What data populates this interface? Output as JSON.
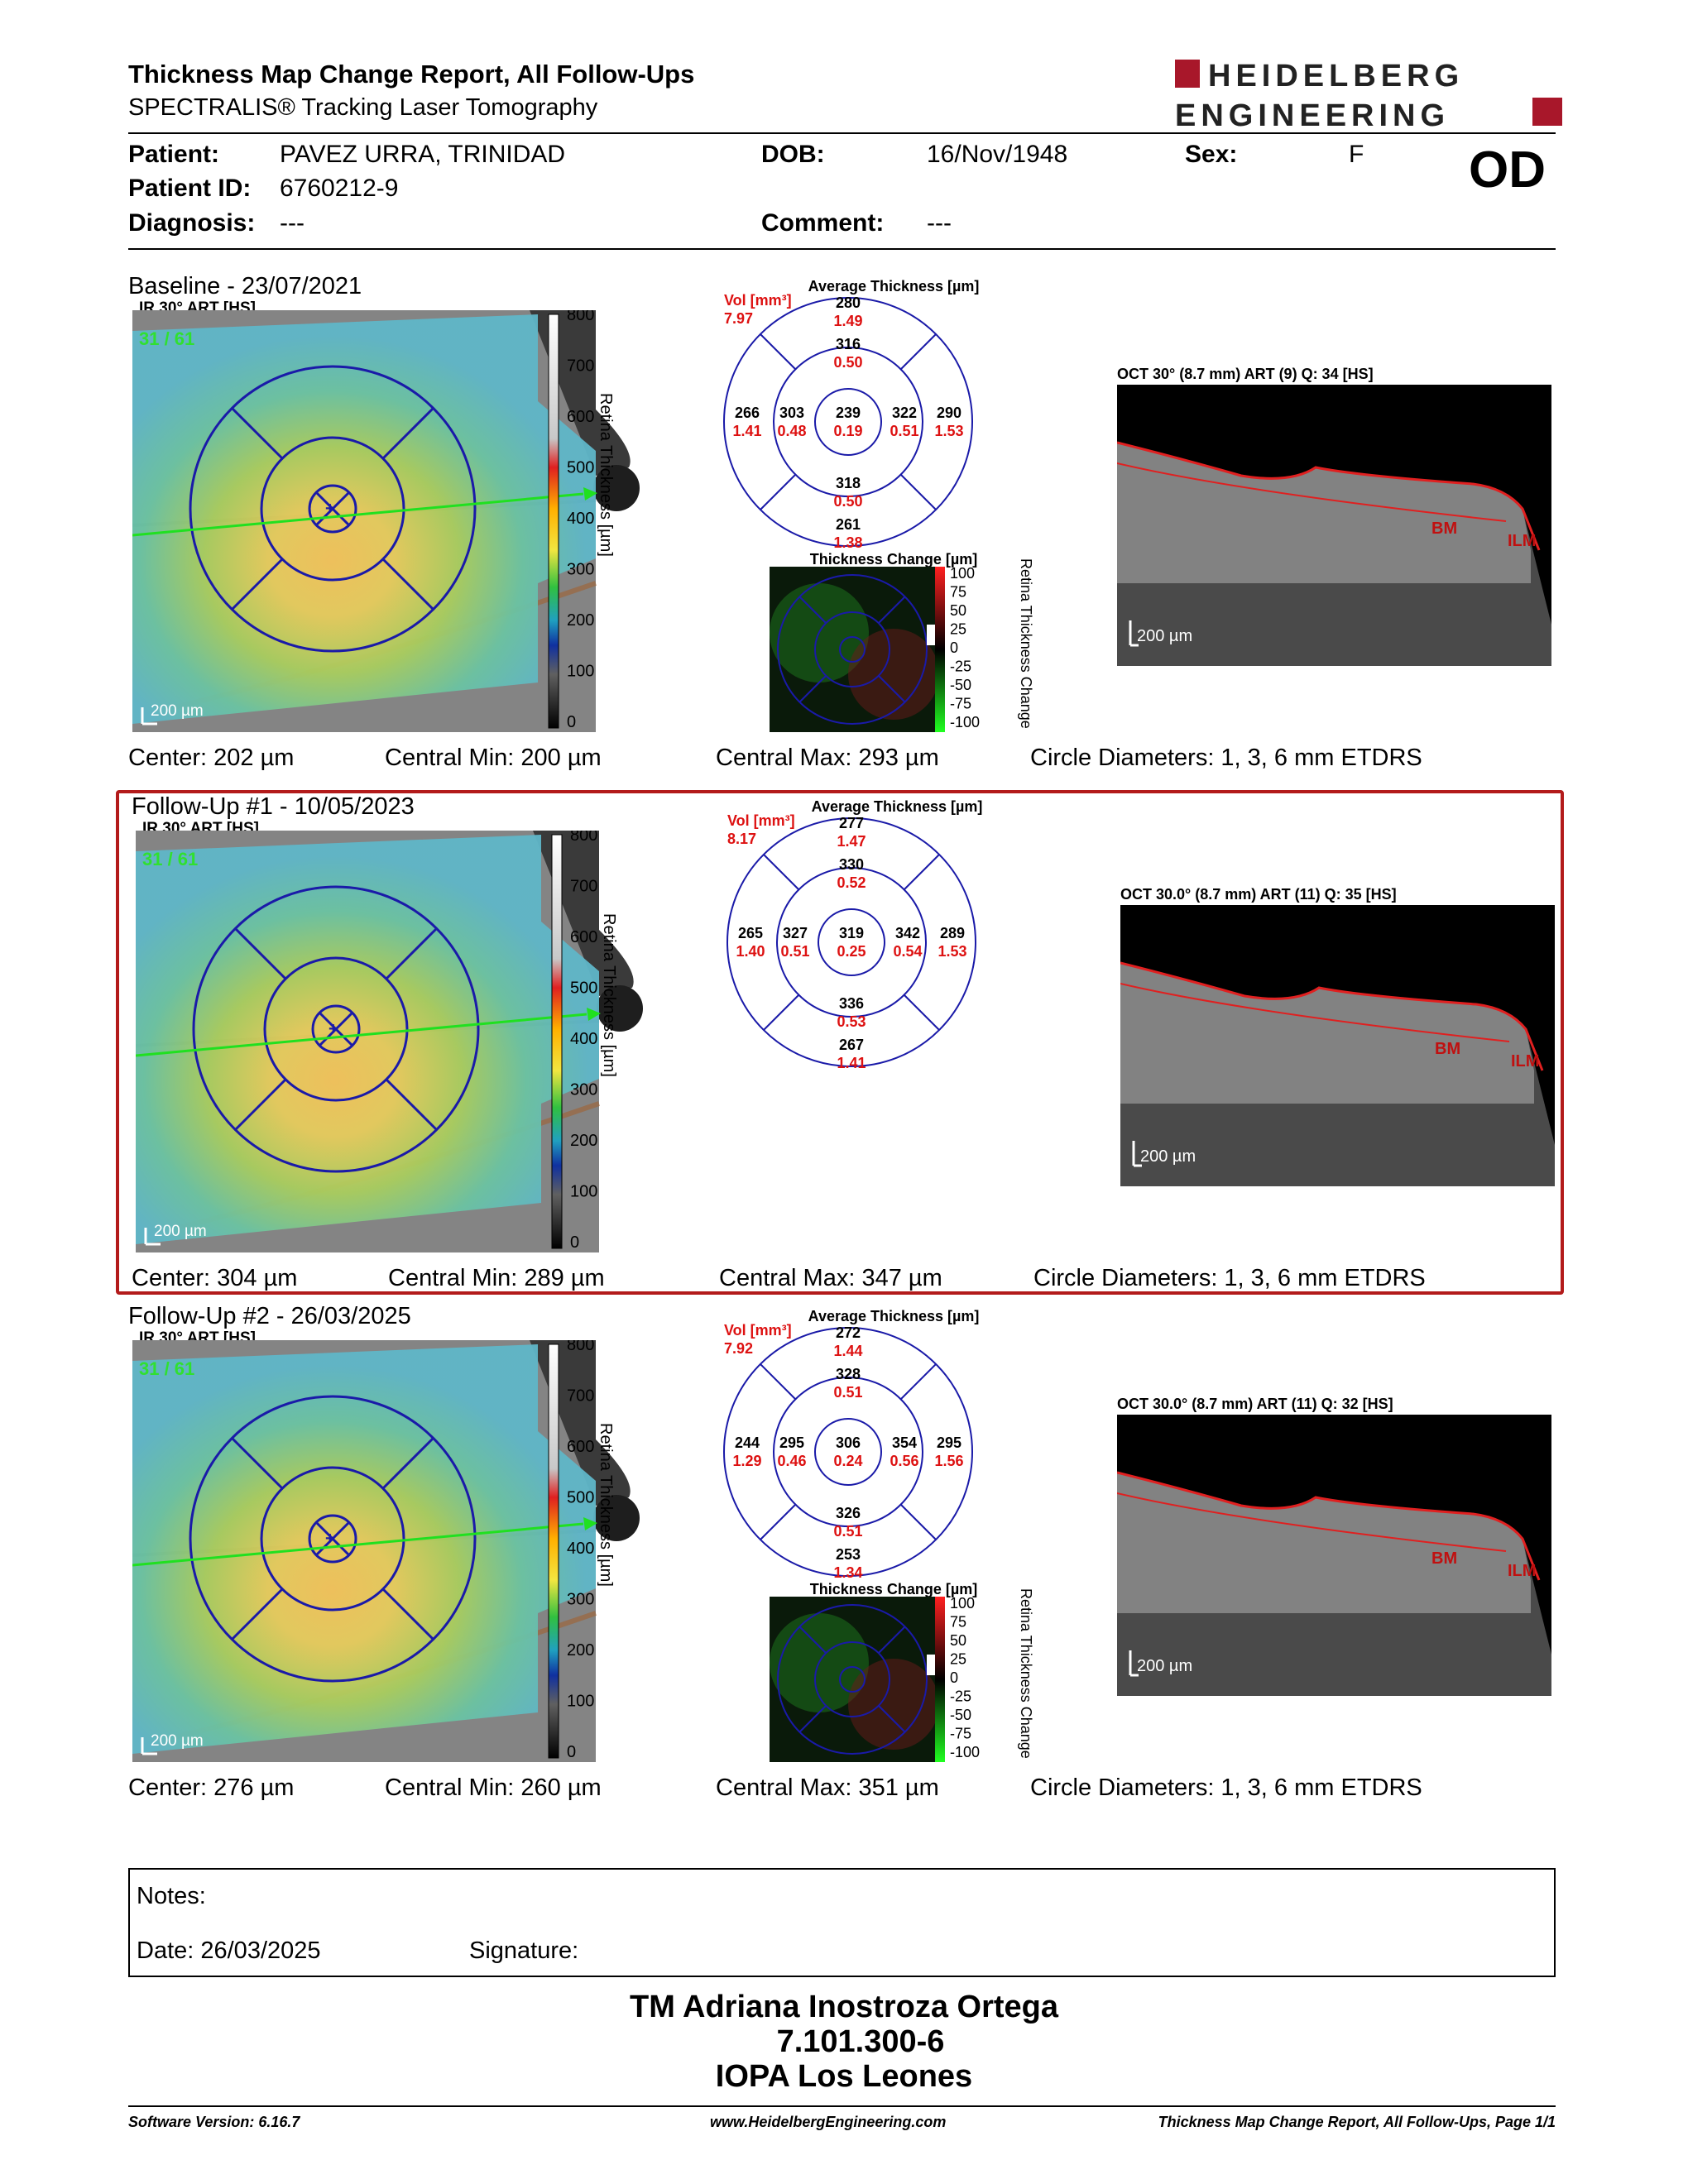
{
  "header": {
    "title": "Thickness Map Change Report, All Follow-Ups",
    "subtitle": "SPECTRALIS® Tracking Laser Tomography",
    "logo_line1": "HEIDELBERG",
    "logo_line2": "ENGINEERING",
    "brand_color": "#a8172a"
  },
  "patient": {
    "patient_label": "Patient:",
    "patient_value": "PAVEZ URRA, TRINIDAD",
    "id_label": "Patient ID:",
    "id_value": "6760212-9",
    "diagnosis_label": "Diagnosis:",
    "diagnosis_value": "---",
    "dob_label": "DOB:",
    "dob_value": "16/Nov/1948",
    "comment_label": "Comment:",
    "comment_value": "---",
    "sex_label": "Sex:",
    "sex_value": "F",
    "eye": "OD"
  },
  "common": {
    "ir_label": "IR 30° ART [HS]",
    "scale_ticks": [
      "800",
      "700",
      "600",
      "500",
      "400",
      "300",
      "200",
      "100",
      "0"
    ],
    "scale_title": "Retina Thickness [µm]",
    "scale_bar": "200 µm",
    "avg_title": "Average Thickness [µm]",
    "vol_label": "Vol [mm³]",
    "tc_title": "Thickness Change [µm]",
    "tc_ticks": [
      "100",
      "75",
      "50",
      "25",
      "0",
      "-25",
      "-50",
      "-75",
      "-100"
    ],
    "tc_scale_title": "Retina Thickness Change",
    "oct_scale": "200 µm",
    "bm": "BM",
    "ilm": "ILM",
    "circle_diam": "Circle Diameters:  1, 3, 6 mm ETDRS",
    "frame_count": "31 / 61"
  },
  "sections": [
    {
      "title": "Baseline - 23/07/2021",
      "vol": "7.97",
      "center": "Center: 202 µm",
      "cmin": "Central Min: 200 µm",
      "cmax": "Central Max: 293 µm",
      "oct_label": "OCT 30° (8.7 mm) ART (9) Q: 34 [HS]",
      "thick": {
        "sup_o": "280",
        "sup_i": "316",
        "nas_o": "266",
        "nas_i": "303",
        "c": "239",
        "tmp_i": "322",
        "tmp_o": "290",
        "inf_i": "318",
        "inf_o": "261"
      },
      "vols": {
        "sup_o": "1.49",
        "sup_i": "0.50",
        "nas_o": "1.41",
        "nas_i": "0.48",
        "c": "0.19",
        "tmp_i": "0.51",
        "tmp_o": "1.53",
        "inf_i": "0.50",
        "inf_o": "1.38"
      }
    },
    {
      "title": "Follow-Up #1 - 10/05/2023",
      "vol": "8.17",
      "center": "Center: 304 µm",
      "cmin": "Central Min: 289 µm",
      "cmax": "Central Max: 347 µm",
      "oct_label": "OCT 30.0° (8.7 mm) ART (11) Q: 35 [HS]",
      "thick": {
        "sup_o": "277",
        "sup_i": "330",
        "nas_o": "265",
        "nas_i": "327",
        "c": "319",
        "tmp_i": "342",
        "tmp_o": "289",
        "inf_i": "336",
        "inf_o": "267"
      },
      "vols": {
        "sup_o": "1.47",
        "sup_i": "0.52",
        "nas_o": "1.40",
        "nas_i": "0.51",
        "c": "0.25",
        "tmp_i": "0.54",
        "tmp_o": "1.53",
        "inf_i": "0.53",
        "inf_o": "1.41"
      }
    },
    {
      "title": "Follow-Up #2 - 26/03/2025",
      "vol": "7.92",
      "center": "Center: 276 µm",
      "cmin": "Central Min: 260 µm",
      "cmax": "Central Max: 351 µm",
      "oct_label": "OCT 30.0° (8.7 mm) ART (11) Q: 32 [HS]",
      "thick": {
        "sup_o": "272",
        "sup_i": "328",
        "nas_o": "244",
        "nas_i": "295",
        "c": "306",
        "tmp_i": "354",
        "tmp_o": "295",
        "inf_i": "326",
        "inf_o": "253"
      },
      "vols": {
        "sup_o": "1.44",
        "sup_i": "0.51",
        "nas_o": "1.29",
        "nas_i": "0.46",
        "c": "0.24",
        "tmp_i": "0.56",
        "tmp_o": "1.56",
        "inf_i": "0.51",
        "inf_o": "1.34"
      }
    }
  ],
  "notes": {
    "notes_label": "Notes:",
    "date_label": "Date: 26/03/2025",
    "signature_label": "Signature:"
  },
  "signature_block": {
    "name": "TM Adriana Inostroza Ortega",
    "rut": "7.101.300-6",
    "place": "IOPA Los Leones"
  },
  "footer": {
    "software": "Software Version: 6.16.7",
    "website": "www.HeidelbergEngineering.com",
    "page": "Thickness Map Change Report, All Follow-Ups, Page 1/1"
  }
}
